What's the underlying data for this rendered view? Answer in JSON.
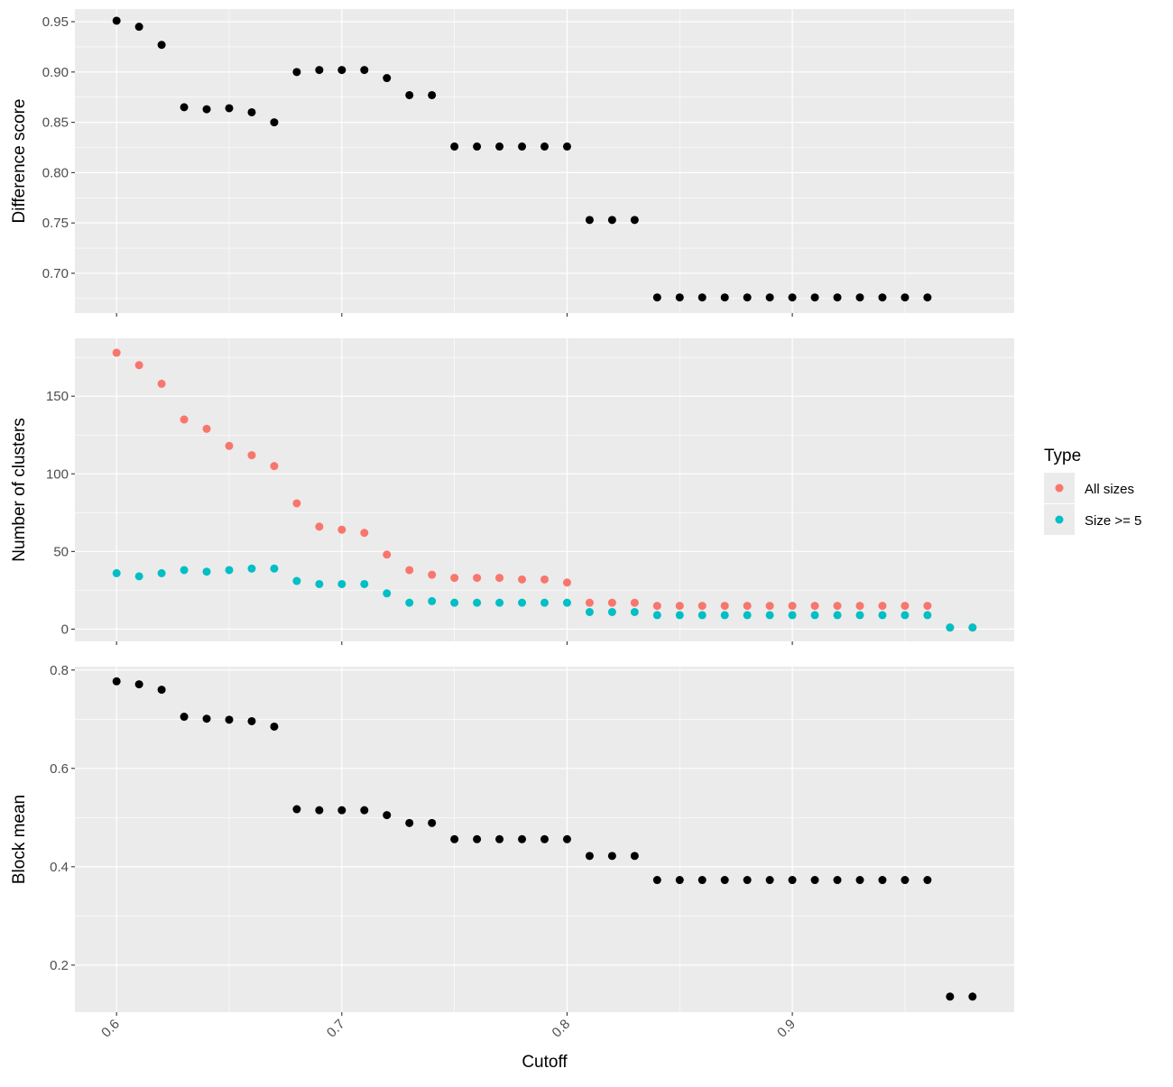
{
  "chart_data": [
    {
      "type": "scatter",
      "ylabel": "Difference score",
      "xlim": [
        0.5815,
        0.9985
      ],
      "ylim": [
        0.6605,
        0.9626
      ],
      "yticks": [
        0.7,
        0.75,
        0.8,
        0.85,
        0.9,
        0.95
      ],
      "ytick_labels": [
        "0.70",
        "0.75",
        "0.80",
        "0.85",
        "0.90",
        "0.95"
      ],
      "grid": true,
      "series": [
        {
          "color": "#000000",
          "x": [
            0.6,
            0.61,
            0.62,
            0.63,
            0.64,
            0.65,
            0.66,
            0.67,
            0.68,
            0.69,
            0.7,
            0.71,
            0.72,
            0.73,
            0.74,
            0.75,
            0.76,
            0.77,
            0.78,
            0.79,
            0.8,
            0.81,
            0.82,
            0.83,
            0.84,
            0.85,
            0.86,
            0.87,
            0.88,
            0.89,
            0.9,
            0.91,
            0.92,
            0.93,
            0.94,
            0.95,
            0.96
          ],
          "y": [
            0.951,
            0.945,
            0.927,
            0.865,
            0.863,
            0.864,
            0.86,
            0.85,
            0.9,
            0.902,
            0.902,
            0.902,
            0.894,
            0.877,
            0.877,
            0.826,
            0.826,
            0.826,
            0.826,
            0.826,
            0.826,
            0.753,
            0.753,
            0.753,
            0.676,
            0.676,
            0.676,
            0.676,
            0.676,
            0.676,
            0.676,
            0.676,
            0.676,
            0.676,
            0.676,
            0.676,
            0.676
          ]
        }
      ]
    },
    {
      "type": "scatter",
      "ylabel": "Number of clusters",
      "xlim": [
        0.5815,
        0.9985
      ],
      "ylim": [
        -7.9,
        187.3
      ],
      "yticks": [
        0,
        50,
        100,
        150
      ],
      "ytick_labels": [
        "0",
        "50",
        "100",
        "150"
      ],
      "grid": true,
      "legend": {
        "title": "Type",
        "position": "right",
        "entries": [
          "All sizes",
          "Size >= 5"
        ]
      },
      "series": [
        {
          "name": "All sizes",
          "color": "#F8766D",
          "x": [
            0.6,
            0.61,
            0.62,
            0.63,
            0.64,
            0.65,
            0.66,
            0.67,
            0.68,
            0.69,
            0.7,
            0.71,
            0.72,
            0.73,
            0.74,
            0.75,
            0.76,
            0.77,
            0.78,
            0.79,
            0.8,
            0.81,
            0.82,
            0.83,
            0.84,
            0.85,
            0.86,
            0.87,
            0.88,
            0.89,
            0.9,
            0.91,
            0.92,
            0.93,
            0.94,
            0.95,
            0.96,
            0.97,
            0.98
          ],
          "y": [
            178,
            170,
            158,
            135,
            129,
            118,
            112,
            105,
            81,
            66,
            64,
            62,
            48,
            38,
            35,
            33,
            33,
            33,
            32,
            32,
            30,
            17,
            17,
            17,
            15,
            15,
            15,
            15,
            15,
            15,
            15,
            15,
            15,
            15,
            15,
            15,
            15,
            1,
            1
          ]
        },
        {
          "name": "Size >= 5",
          "color": "#00BFC4",
          "x": [
            0.6,
            0.61,
            0.62,
            0.63,
            0.64,
            0.65,
            0.66,
            0.67,
            0.68,
            0.69,
            0.7,
            0.71,
            0.72,
            0.73,
            0.74,
            0.75,
            0.76,
            0.77,
            0.78,
            0.79,
            0.8,
            0.81,
            0.82,
            0.83,
            0.84,
            0.85,
            0.86,
            0.87,
            0.88,
            0.89,
            0.9,
            0.91,
            0.92,
            0.93,
            0.94,
            0.95,
            0.96,
            0.97,
            0.98
          ],
          "y": [
            36,
            34,
            36,
            38,
            37,
            38,
            39,
            39,
            31,
            29,
            29,
            29,
            23,
            17,
            18,
            17,
            17,
            17,
            17,
            17,
            17,
            11,
            11,
            11,
            9,
            9,
            9,
            9,
            9,
            9,
            9,
            9,
            9,
            9,
            9,
            9,
            9,
            1,
            1
          ]
        }
      ]
    },
    {
      "type": "scatter",
      "xlabel": "Cutoff",
      "ylabel": "Block mean",
      "xlim": [
        0.5815,
        0.9985
      ],
      "xticks": [
        0.6,
        0.7,
        0.8,
        0.9
      ],
      "xtick_labels": [
        "0.6",
        "0.7",
        "0.8",
        "0.9"
      ],
      "ylim": [
        0.1044,
        0.8069
      ],
      "yticks": [
        0.2,
        0.4,
        0.6,
        0.8
      ],
      "ytick_labels": [
        "0.2",
        "0.4",
        "0.6",
        "0.8"
      ],
      "grid": true,
      "series": [
        {
          "color": "#000000",
          "x": [
            0.6,
            0.61,
            0.62,
            0.63,
            0.64,
            0.65,
            0.66,
            0.67,
            0.68,
            0.69,
            0.7,
            0.71,
            0.72,
            0.73,
            0.74,
            0.75,
            0.76,
            0.77,
            0.78,
            0.79,
            0.8,
            0.81,
            0.82,
            0.83,
            0.84,
            0.85,
            0.86,
            0.87,
            0.88,
            0.89,
            0.9,
            0.91,
            0.92,
            0.93,
            0.94,
            0.95,
            0.96,
            0.97,
            0.98
          ],
          "y": [
            0.777,
            0.771,
            0.76,
            0.705,
            0.701,
            0.699,
            0.696,
            0.685,
            0.517,
            0.515,
            0.515,
            0.515,
            0.505,
            0.489,
            0.489,
            0.456,
            0.456,
            0.456,
            0.456,
            0.456,
            0.456,
            0.422,
            0.422,
            0.422,
            0.373,
            0.373,
            0.373,
            0.373,
            0.373,
            0.373,
            0.373,
            0.373,
            0.373,
            0.373,
            0.373,
            0.373,
            0.373,
            0.136,
            0.136
          ]
        }
      ]
    }
  ]
}
